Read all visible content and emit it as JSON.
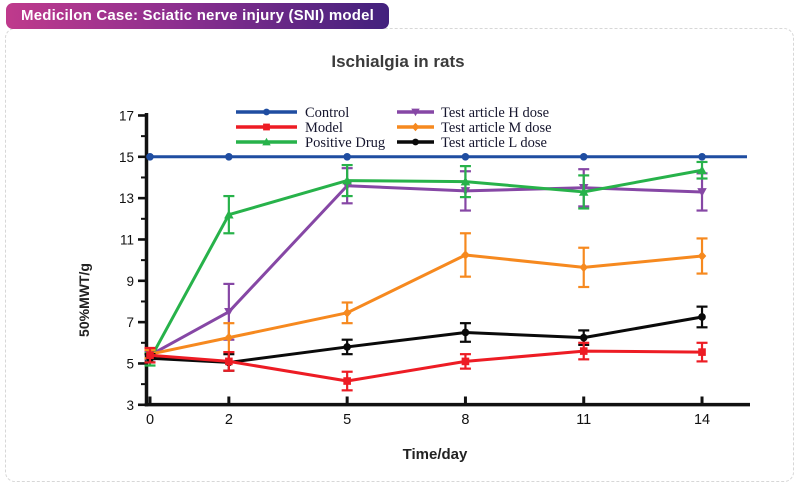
{
  "badge": {
    "label": "Medicilon Case: Sciatic nerve injury (SNI) model"
  },
  "colors": {
    "badge_gradient_start": "#bf3a8c",
    "badge_gradient_end": "#42217d",
    "card_border": "#d7d7d7",
    "axis": "#111111",
    "title_text": "#3b3b3b",
    "legend_text": "#16162e"
  },
  "chart_data": {
    "type": "line",
    "title": "Ischialgia in rats",
    "xlabel": "Time/day",
    "ylabel": "50%MWT/g",
    "x": [
      0,
      2,
      5,
      8,
      11,
      14
    ],
    "ylim": [
      3,
      17
    ],
    "yticks": [
      3,
      5,
      7,
      9,
      11,
      13,
      15,
      17
    ],
    "yticks_minor": [
      4,
      6,
      8,
      10,
      12,
      14,
      16
    ],
    "grid": "off",
    "legend_position": "inside-top, two columns",
    "series": [
      {
        "name": "Control",
        "color": "#1f4da1",
        "marker": "circle",
        "values": [
          15,
          15,
          15,
          15,
          15,
          15
        ],
        "errors": [
          0,
          0,
          0,
          0,
          0,
          0
        ]
      },
      {
        "name": "Model",
        "color": "#ed1c24",
        "marker": "square",
        "values": [
          5.4,
          5.1,
          4.15,
          5.1,
          5.6,
          5.55
        ],
        "errors": [
          0.35,
          0.45,
          0.45,
          0.35,
          0.4,
          0.45
        ]
      },
      {
        "name": "Positive Drug",
        "color": "#27b24a",
        "marker": "triangle-up",
        "values": [
          5.2,
          12.2,
          13.85,
          13.8,
          13.3,
          14.35
        ],
        "errors": [
          0.3,
          0.9,
          0.75,
          0.75,
          0.8,
          0.4
        ]
      },
      {
        "name": "Test article H dose",
        "color": "#8647a5",
        "marker": "triangle-down",
        "values": [
          5.4,
          7.5,
          13.6,
          13.35,
          13.5,
          13.3
        ],
        "errors": [
          0.2,
          1.35,
          0.85,
          0.95,
          0.9,
          0.9
        ]
      },
      {
        "name": "Test article M dose",
        "color": "#f6891f",
        "marker": "diamond",
        "values": [
          5.45,
          6.25,
          7.45,
          10.25,
          9.65,
          10.2
        ],
        "errors": [
          0.2,
          0.7,
          0.5,
          1.05,
          0.95,
          0.85
        ]
      },
      {
        "name": "Test article L dose",
        "color": "#0a0a0a",
        "marker": "circle",
        "values": [
          5.25,
          5.05,
          5.8,
          6.5,
          6.25,
          7.25
        ],
        "errors": [
          0.2,
          0.4,
          0.35,
          0.45,
          0.35,
          0.5
        ]
      }
    ]
  }
}
